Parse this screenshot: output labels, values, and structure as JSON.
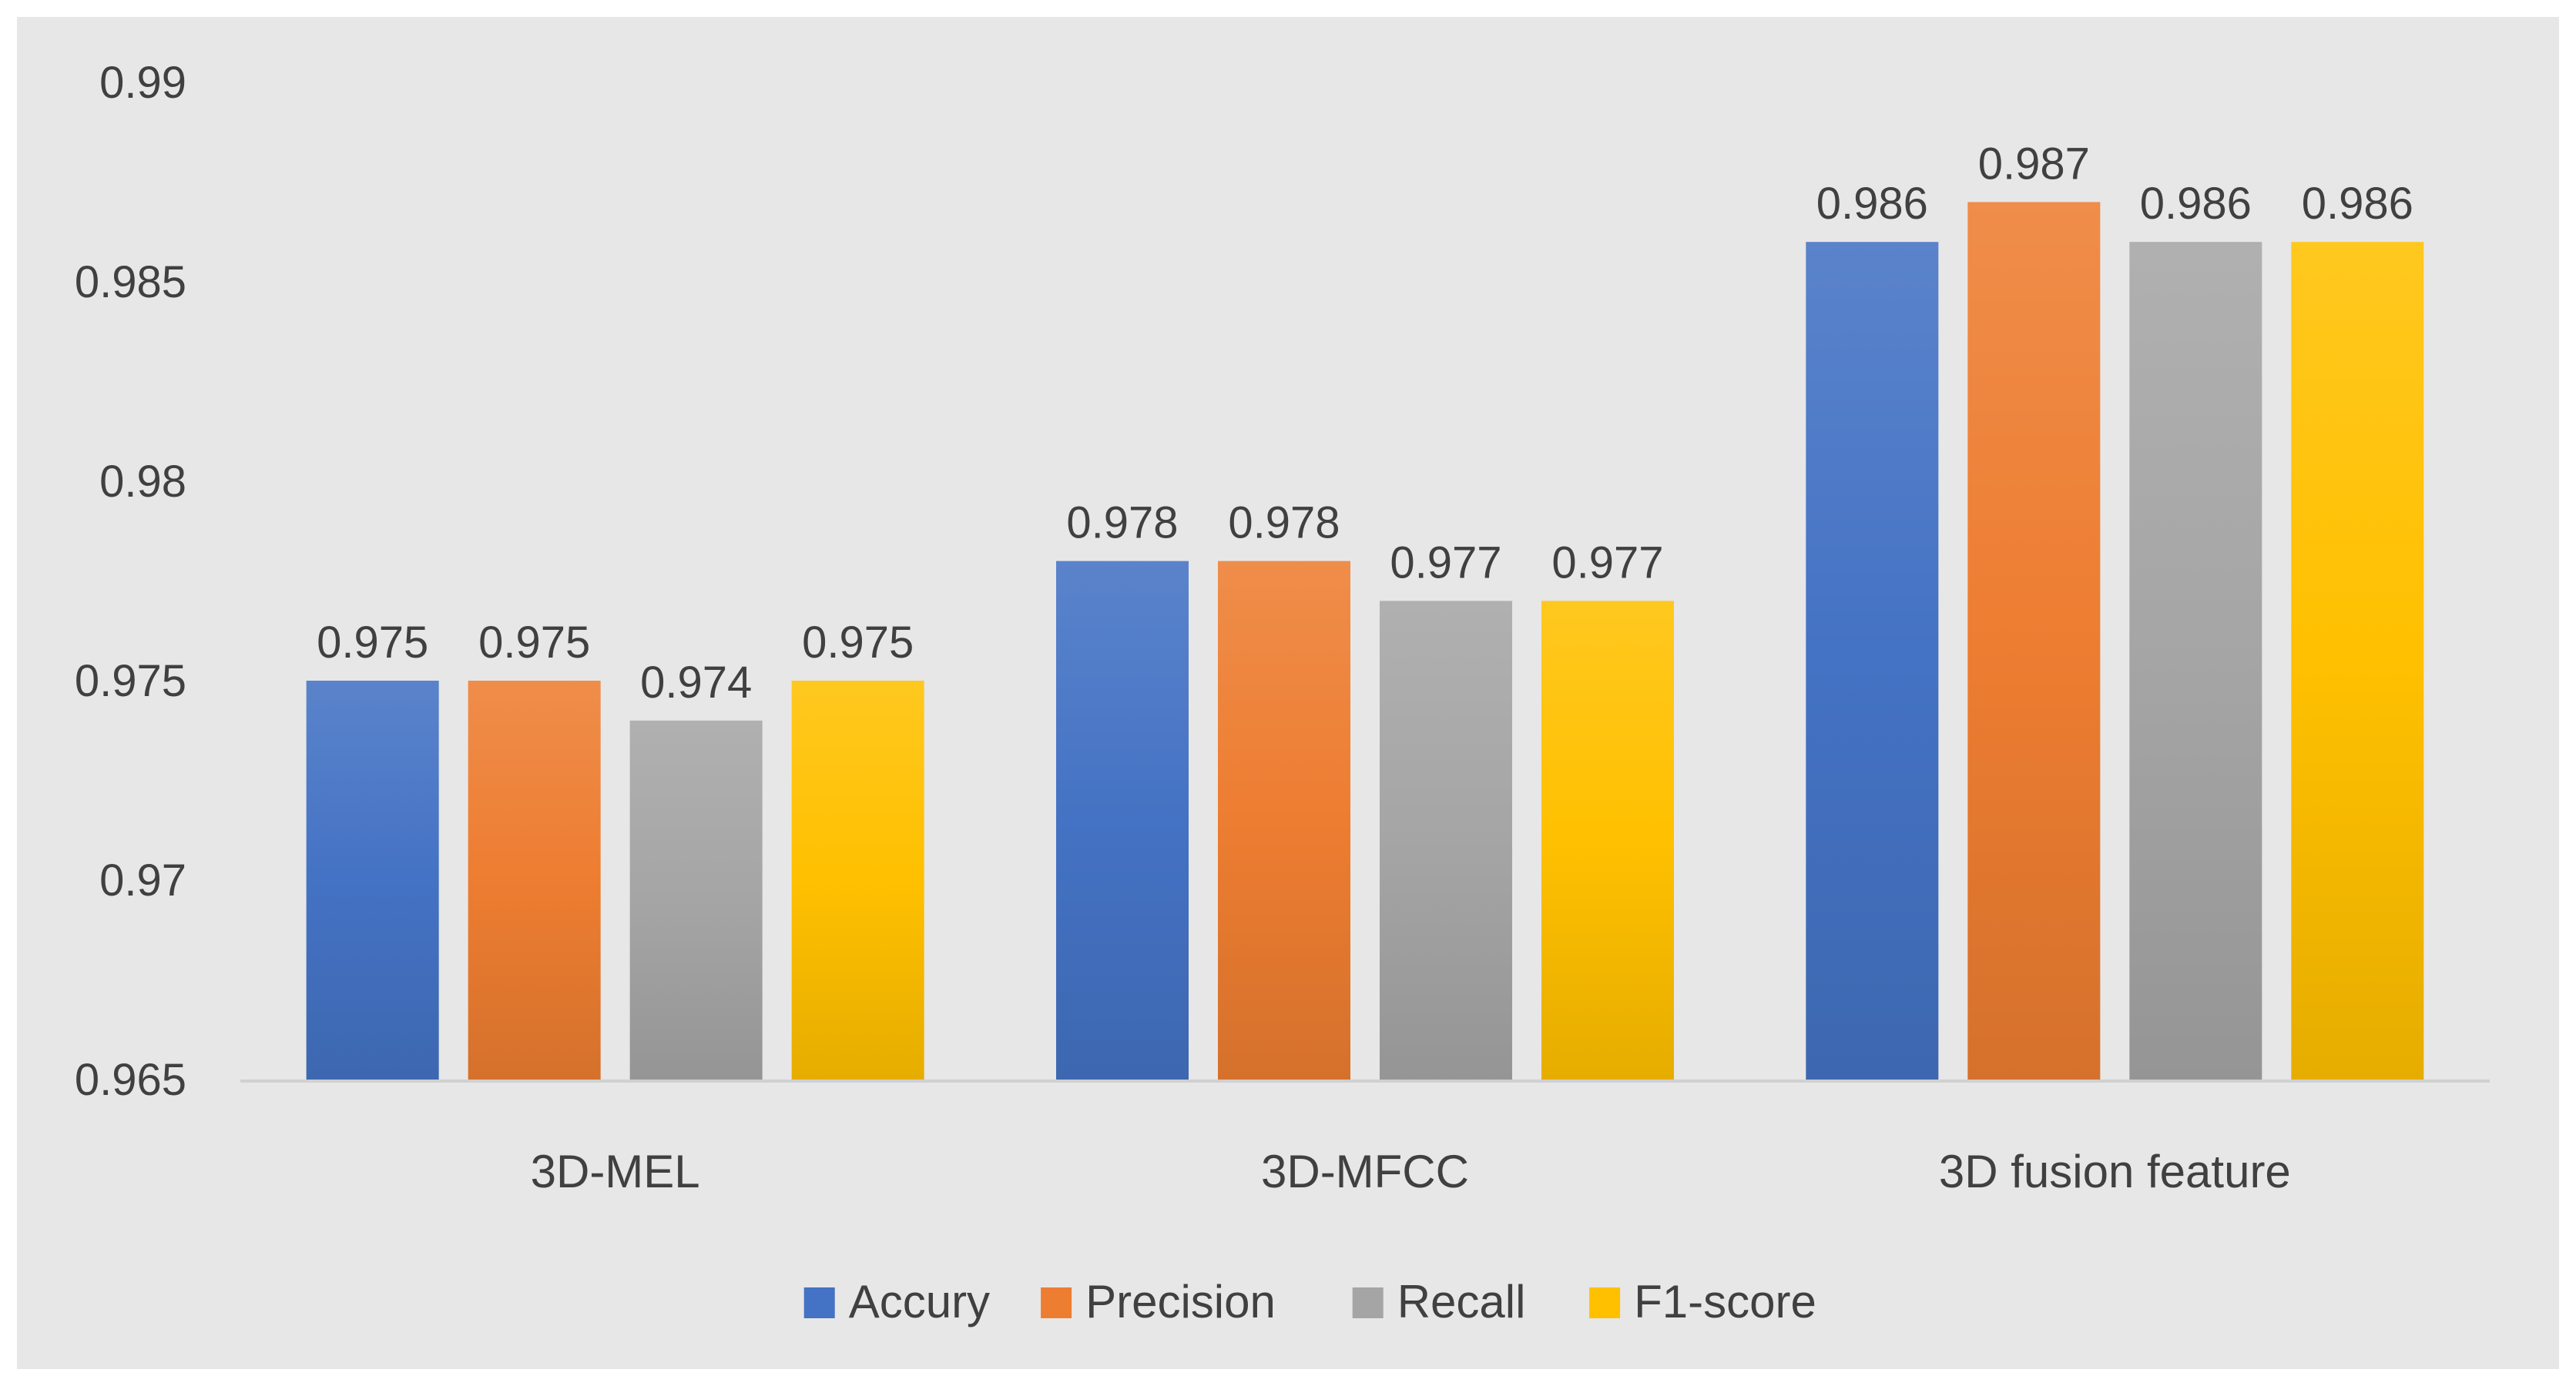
{
  "chart_data": {
    "type": "bar",
    "title": "",
    "xlabel": "",
    "ylabel": "",
    "categories": [
      "3D-MEL",
      "3D-MFCC",
      "3D fusion feature"
    ],
    "series": [
      {
        "name": "Accury",
        "values": [
          0.975,
          0.978,
          0.986
        ],
        "color": "#4472c4"
      },
      {
        "name": "Precision",
        "values": [
          0.975,
          0.978,
          0.987
        ],
        "color": "#ed7d31"
      },
      {
        "name": "Recall",
        "values": [
          0.974,
          0.977,
          0.986
        ],
        "color": "#a5a5a5"
      },
      {
        "name": "F1-score",
        "values": [
          0.975,
          0.977,
          0.986
        ],
        "color": "#ffc000"
      }
    ],
    "data_labels": [
      [
        "0.975",
        "0.978",
        "0.986"
      ],
      [
        "0.975",
        "0.978",
        "0.987"
      ],
      [
        "0.974",
        "0.977",
        "0.986"
      ],
      [
        "0.975",
        "0.977",
        "0.986"
      ]
    ],
    "ylim": [
      0.965,
      0.99
    ],
    "yticks": [
      0.965,
      0.97,
      0.975,
      0.98,
      0.985,
      0.99
    ],
    "ytick_labels": [
      "0.965",
      "0.97",
      "0.975",
      "0.98",
      "0.985",
      "0.99"
    ],
    "grid": false,
    "legend_position": "bottom",
    "background": "#e7e7e7"
  }
}
